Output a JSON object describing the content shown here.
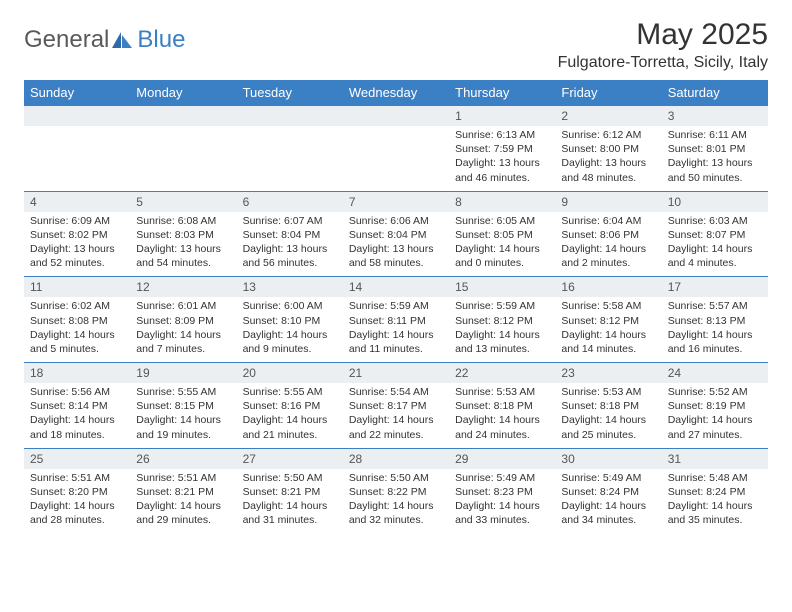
{
  "logo": {
    "text1": "General",
    "text2": "Blue"
  },
  "title": "May 2025",
  "location": "Fulgatore-Torretta, Sicily, Italy",
  "colors": {
    "header_bg": "#3b7fc4",
    "header_text": "#ffffff",
    "num_band_bg": "#eceff1",
    "row_border": "#3b7fc4",
    "body_text": "#333333",
    "logo_gray": "#5a5a5a",
    "logo_blue": "#3b7fc4",
    "page_bg": "#ffffff"
  },
  "day_headers": [
    "Sunday",
    "Monday",
    "Tuesday",
    "Wednesday",
    "Thursday",
    "Friday",
    "Saturday"
  ],
  "weeks": [
    [
      null,
      null,
      null,
      null,
      {
        "n": "1",
        "sr": "6:13 AM",
        "ss": "7:59 PM",
        "dl": "13 hours and 46 minutes."
      },
      {
        "n": "2",
        "sr": "6:12 AM",
        "ss": "8:00 PM",
        "dl": "13 hours and 48 minutes."
      },
      {
        "n": "3",
        "sr": "6:11 AM",
        "ss": "8:01 PM",
        "dl": "13 hours and 50 minutes."
      }
    ],
    [
      {
        "n": "4",
        "sr": "6:09 AM",
        "ss": "8:02 PM",
        "dl": "13 hours and 52 minutes."
      },
      {
        "n": "5",
        "sr": "6:08 AM",
        "ss": "8:03 PM",
        "dl": "13 hours and 54 minutes."
      },
      {
        "n": "6",
        "sr": "6:07 AM",
        "ss": "8:04 PM",
        "dl": "13 hours and 56 minutes."
      },
      {
        "n": "7",
        "sr": "6:06 AM",
        "ss": "8:04 PM",
        "dl": "13 hours and 58 minutes."
      },
      {
        "n": "8",
        "sr": "6:05 AM",
        "ss": "8:05 PM",
        "dl": "14 hours and 0 minutes."
      },
      {
        "n": "9",
        "sr": "6:04 AM",
        "ss": "8:06 PM",
        "dl": "14 hours and 2 minutes."
      },
      {
        "n": "10",
        "sr": "6:03 AM",
        "ss": "8:07 PM",
        "dl": "14 hours and 4 minutes."
      }
    ],
    [
      {
        "n": "11",
        "sr": "6:02 AM",
        "ss": "8:08 PM",
        "dl": "14 hours and 5 minutes."
      },
      {
        "n": "12",
        "sr": "6:01 AM",
        "ss": "8:09 PM",
        "dl": "14 hours and 7 minutes."
      },
      {
        "n": "13",
        "sr": "6:00 AM",
        "ss": "8:10 PM",
        "dl": "14 hours and 9 minutes."
      },
      {
        "n": "14",
        "sr": "5:59 AM",
        "ss": "8:11 PM",
        "dl": "14 hours and 11 minutes."
      },
      {
        "n": "15",
        "sr": "5:59 AM",
        "ss": "8:12 PM",
        "dl": "14 hours and 13 minutes."
      },
      {
        "n": "16",
        "sr": "5:58 AM",
        "ss": "8:12 PM",
        "dl": "14 hours and 14 minutes."
      },
      {
        "n": "17",
        "sr": "5:57 AM",
        "ss": "8:13 PM",
        "dl": "14 hours and 16 minutes."
      }
    ],
    [
      {
        "n": "18",
        "sr": "5:56 AM",
        "ss": "8:14 PM",
        "dl": "14 hours and 18 minutes."
      },
      {
        "n": "19",
        "sr": "5:55 AM",
        "ss": "8:15 PM",
        "dl": "14 hours and 19 minutes."
      },
      {
        "n": "20",
        "sr": "5:55 AM",
        "ss": "8:16 PM",
        "dl": "14 hours and 21 minutes."
      },
      {
        "n": "21",
        "sr": "5:54 AM",
        "ss": "8:17 PM",
        "dl": "14 hours and 22 minutes."
      },
      {
        "n": "22",
        "sr": "5:53 AM",
        "ss": "8:18 PM",
        "dl": "14 hours and 24 minutes."
      },
      {
        "n": "23",
        "sr": "5:53 AM",
        "ss": "8:18 PM",
        "dl": "14 hours and 25 minutes."
      },
      {
        "n": "24",
        "sr": "5:52 AM",
        "ss": "8:19 PM",
        "dl": "14 hours and 27 minutes."
      }
    ],
    [
      {
        "n": "25",
        "sr": "5:51 AM",
        "ss": "8:20 PM",
        "dl": "14 hours and 28 minutes."
      },
      {
        "n": "26",
        "sr": "5:51 AM",
        "ss": "8:21 PM",
        "dl": "14 hours and 29 minutes."
      },
      {
        "n": "27",
        "sr": "5:50 AM",
        "ss": "8:21 PM",
        "dl": "14 hours and 31 minutes."
      },
      {
        "n": "28",
        "sr": "5:50 AM",
        "ss": "8:22 PM",
        "dl": "14 hours and 32 minutes."
      },
      {
        "n": "29",
        "sr": "5:49 AM",
        "ss": "8:23 PM",
        "dl": "14 hours and 33 minutes."
      },
      {
        "n": "30",
        "sr": "5:49 AM",
        "ss": "8:24 PM",
        "dl": "14 hours and 34 minutes."
      },
      {
        "n": "31",
        "sr": "5:48 AM",
        "ss": "8:24 PM",
        "dl": "14 hours and 35 minutes."
      }
    ]
  ],
  "labels": {
    "sunrise": "Sunrise:",
    "sunset": "Sunset:",
    "daylight": "Daylight:"
  }
}
